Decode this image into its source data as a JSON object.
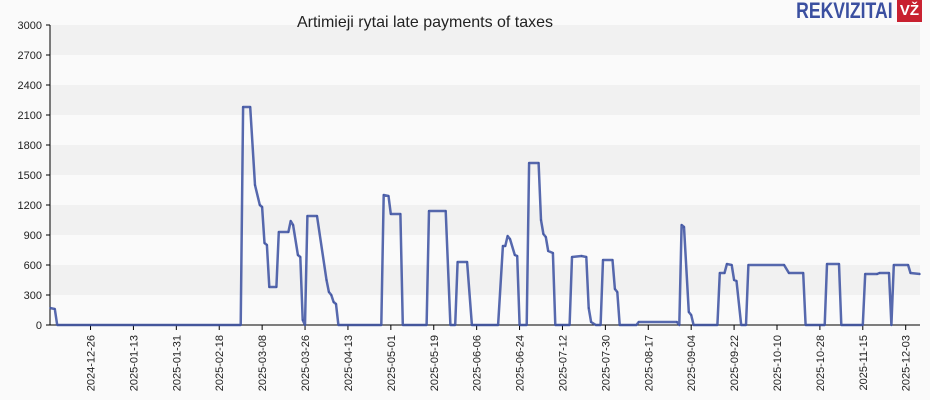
{
  "chart_data": {
    "type": "line",
    "title": "Artimieji rytai late payments of taxes",
    "xlabel": "",
    "ylabel": "",
    "ylim": [
      0,
      3000
    ],
    "xlim": [
      "2024-12-09",
      "2025-12-09"
    ],
    "yticks": [
      0,
      300,
      600,
      900,
      1200,
      1500,
      1800,
      2100,
      2400,
      2700,
      3000
    ],
    "xticks": [
      "2024-12-26",
      "2025-01-13",
      "2025-01-31",
      "2025-02-18",
      "2025-03-08",
      "2025-03-26",
      "2025-04-13",
      "2025-05-01",
      "2025-05-19",
      "2025-06-06",
      "2025-06-24",
      "2025-07-12",
      "2025-07-30",
      "2025-08-17",
      "2025-09-04",
      "2025-09-22",
      "2025-10-10",
      "2025-10-28",
      "2025-11-15",
      "2025-12-03"
    ],
    "grid": "horizontal alternating bands",
    "line_color": "#3a4fa0",
    "series": [
      {
        "points": [
          [
            "2024-12-09",
            170
          ],
          [
            "2024-12-11",
            160
          ],
          [
            "2024-12-12",
            0
          ],
          [
            "2025-02-27",
            0
          ],
          [
            "2025-02-28",
            2180
          ],
          [
            "2025-03-03",
            2180
          ],
          [
            "2025-03-05",
            1400
          ],
          [
            "2025-03-07",
            1200
          ],
          [
            "2025-03-08",
            1180
          ],
          [
            "2025-03-09",
            820
          ],
          [
            "2025-03-10",
            800
          ],
          [
            "2025-03-11",
            380
          ],
          [
            "2025-03-14",
            380
          ],
          [
            "2025-03-15",
            930
          ],
          [
            "2025-03-19",
            930
          ],
          [
            "2025-03-20",
            1040
          ],
          [
            "2025-03-21",
            1000
          ],
          [
            "2025-03-23",
            700
          ],
          [
            "2025-03-24",
            680
          ],
          [
            "2025-03-25",
            50
          ],
          [
            "2025-03-26",
            0
          ],
          [
            "2025-03-27",
            1090
          ],
          [
            "2025-03-31",
            1090
          ],
          [
            "2025-04-04",
            450
          ],
          [
            "2025-04-05",
            330
          ],
          [
            "2025-04-06",
            300
          ],
          [
            "2025-04-07",
            230
          ],
          [
            "2025-04-08",
            210
          ],
          [
            "2025-04-09",
            0
          ],
          [
            "2025-04-27",
            0
          ],
          [
            "2025-04-28",
            1300
          ],
          [
            "2025-04-30",
            1290
          ],
          [
            "2025-05-01",
            1110
          ],
          [
            "2025-05-05",
            1110
          ],
          [
            "2025-05-06",
            0
          ],
          [
            "2025-05-16",
            0
          ],
          [
            "2025-05-17",
            1140
          ],
          [
            "2025-05-24",
            1140
          ],
          [
            "2025-05-26",
            0
          ],
          [
            "2025-05-28",
            0
          ],
          [
            "2025-05-29",
            630
          ],
          [
            "2025-06-02",
            630
          ],
          [
            "2025-06-04",
            0
          ],
          [
            "2025-06-15",
            0
          ],
          [
            "2025-06-17",
            790
          ],
          [
            "2025-06-18",
            790
          ],
          [
            "2025-06-19",
            890
          ],
          [
            "2025-06-20",
            860
          ],
          [
            "2025-06-22",
            700
          ],
          [
            "2025-06-23",
            690
          ],
          [
            "2025-06-24",
            0
          ],
          [
            "2025-06-27",
            0
          ],
          [
            "2025-06-28",
            1620
          ],
          [
            "2025-07-02",
            1620
          ],
          [
            "2025-07-03",
            1050
          ],
          [
            "2025-07-04",
            910
          ],
          [
            "2025-07-05",
            880
          ],
          [
            "2025-07-06",
            740
          ],
          [
            "2025-07-08",
            720
          ],
          [
            "2025-07-09",
            0
          ],
          [
            "2025-07-15",
            0
          ],
          [
            "2025-07-16",
            680
          ],
          [
            "2025-07-20",
            690
          ],
          [
            "2025-07-22",
            680
          ],
          [
            "2025-07-23",
            170
          ],
          [
            "2025-07-24",
            30
          ],
          [
            "2025-07-26",
            0
          ],
          [
            "2025-07-28",
            0
          ],
          [
            "2025-07-29",
            650
          ],
          [
            "2025-08-02",
            650
          ],
          [
            "2025-08-03",
            360
          ],
          [
            "2025-08-04",
            330
          ],
          [
            "2025-08-05",
            0
          ],
          [
            "2025-08-12",
            0
          ],
          [
            "2025-08-13",
            30
          ],
          [
            "2025-08-29",
            30
          ],
          [
            "2025-08-30",
            0
          ],
          [
            "2025-08-31",
            1000
          ],
          [
            "2025-09-01",
            980
          ],
          [
            "2025-09-03",
            130
          ],
          [
            "2025-09-04",
            100
          ],
          [
            "2025-09-05",
            0
          ],
          [
            "2025-09-15",
            0
          ],
          [
            "2025-09-16",
            520
          ],
          [
            "2025-09-18",
            520
          ],
          [
            "2025-09-19",
            610
          ],
          [
            "2025-09-21",
            600
          ],
          [
            "2025-09-22",
            450
          ],
          [
            "2025-09-23",
            440
          ],
          [
            "2025-09-25",
            0
          ],
          [
            "2025-09-27",
            0
          ],
          [
            "2025-09-28",
            600
          ],
          [
            "2025-10-13",
            600
          ],
          [
            "2025-10-15",
            520
          ],
          [
            "2025-10-21",
            520
          ],
          [
            "2025-10-22",
            0
          ],
          [
            "2025-10-30",
            0
          ],
          [
            "2025-10-31",
            610
          ],
          [
            "2025-11-05",
            610
          ],
          [
            "2025-11-06",
            0
          ],
          [
            "2025-11-15",
            0
          ],
          [
            "2025-11-16",
            510
          ],
          [
            "2025-11-21",
            510
          ],
          [
            "2025-11-22",
            520
          ],
          [
            "2025-11-26",
            520
          ],
          [
            "2025-11-27",
            0
          ],
          [
            "2025-11-28",
            600
          ],
          [
            "2025-12-04",
            600
          ],
          [
            "2025-12-05",
            520
          ],
          [
            "2025-12-09",
            510
          ]
        ]
      }
    ]
  },
  "logo": {
    "text": "REKVIZITAI",
    "badge": "VŽ",
    "text_color": "#3a4fa0",
    "badge_color": "#c8202f"
  }
}
